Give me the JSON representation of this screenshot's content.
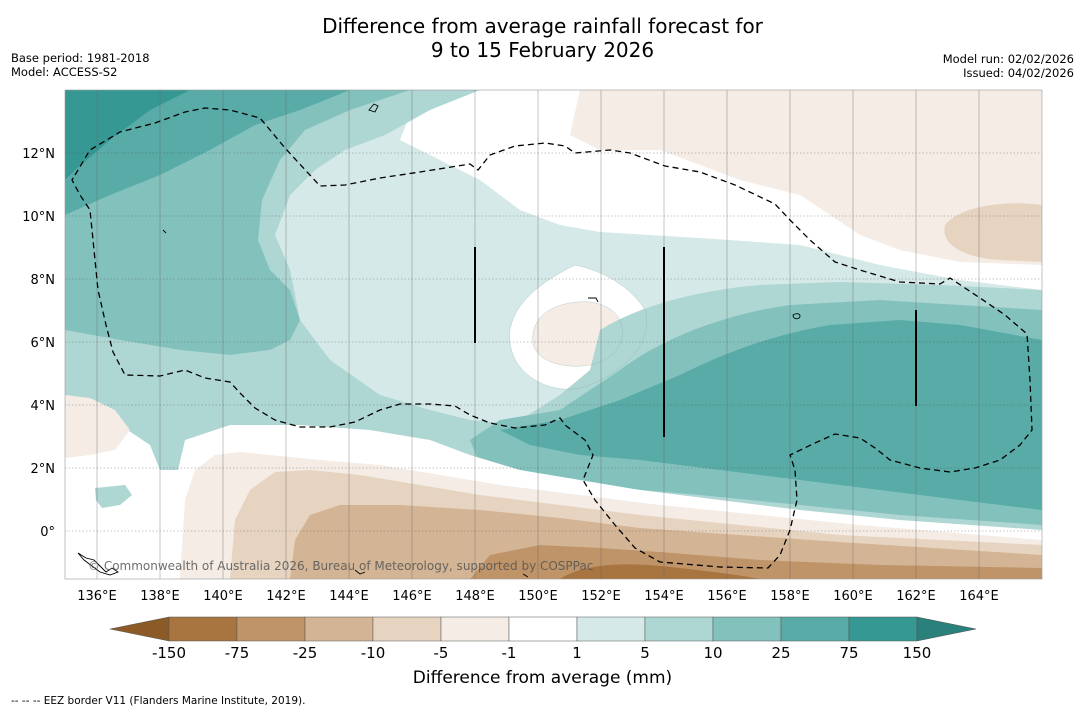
{
  "title": {
    "line1": "Difference from average rainfall forecast for",
    "line2": "9 to 15 February 2026"
  },
  "meta_left": {
    "base_period": "Base period: 1981-2018",
    "model": "Model: ACCESS-S2"
  },
  "meta_right": {
    "model_run": "Model run: 02/02/2026",
    "issued": "Issued: 04/02/2026"
  },
  "map": {
    "lat_labels": [
      "12°N",
      "10°N",
      "8°N",
      "6°N",
      "4°N",
      "2°N",
      "0°"
    ],
    "lon_labels": [
      "136°E",
      "138°E",
      "140°E",
      "142°E",
      "144°E",
      "146°E",
      "148°E",
      "150°E",
      "152°E",
      "154°E",
      "156°E",
      "158°E",
      "160°E",
      "162°E",
      "164°E"
    ],
    "copyright": "© Commonwealth of Australia 2026, Bureau of Meteorology, supported by COSPPac"
  },
  "colorbar": {
    "labels": [
      "-150",
      "-75",
      "-25",
      "-10",
      "-5",
      "-1",
      "1",
      "5",
      "10",
      "25",
      "75",
      "150"
    ],
    "colors": [
      "#8c5a26",
      "#a8743f",
      "#bf9468",
      "#d3b595",
      "#e6d4c1",
      "#f4ece5",
      "#ffffff",
      "#d5e9e8",
      "#aed6d3",
      "#83c1bd",
      "#58aba6",
      "#369892",
      "#2a807b"
    ],
    "title": "Difference from average (mm)"
  },
  "footnote": "--  --  -- EEZ border V11 (Flanders Marine Institute, 2019)."
}
